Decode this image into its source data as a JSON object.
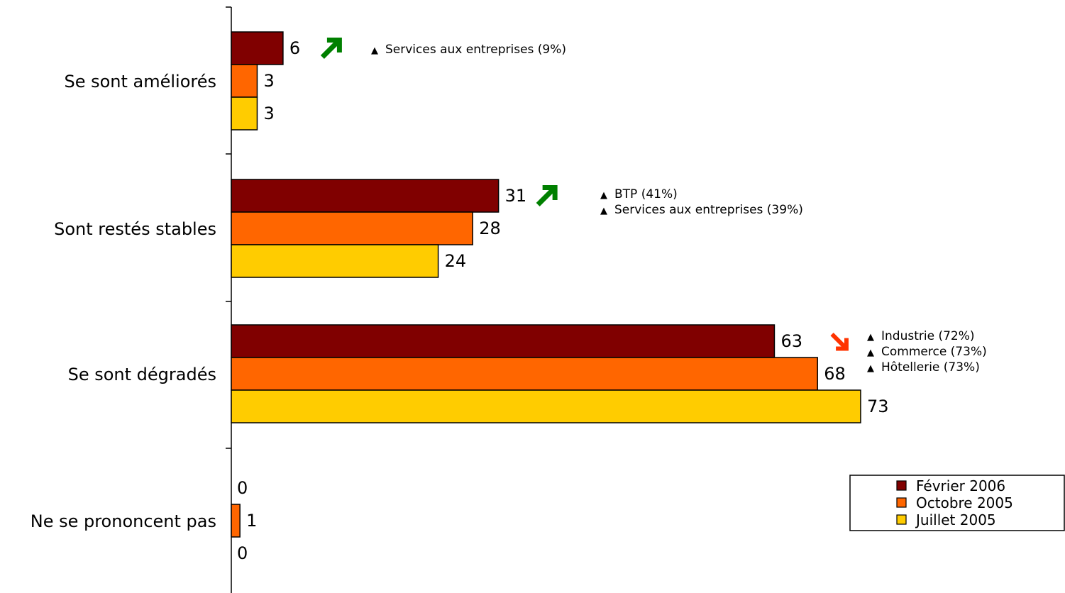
{
  "chart_data": {
    "type": "bar",
    "orientation": "horizontal",
    "categories": [
      "Se sont améliorés",
      "Sont restés stables",
      "Se sont dégradés",
      "Ne se prononcent pas"
    ],
    "series": [
      {
        "name": "Février 2006",
        "color": "#800000",
        "values": [
          6,
          31,
          63,
          0
        ]
      },
      {
        "name": "Octobre 2005",
        "color": "#FF6600",
        "values": [
          3,
          28,
          68,
          1
        ]
      },
      {
        "name": "Juillet 2005",
        "color": "#FFCC00",
        "values": [
          3,
          24,
          73,
          0
        ]
      }
    ],
    "xlim": [
      0,
      100
    ],
    "grid": false,
    "legend_position": "bottom-right",
    "trend_arrows": [
      {
        "category": "Se sont améliorés",
        "direction": "up",
        "color": "#008000"
      },
      {
        "category": "Sont restés stables",
        "direction": "up",
        "color": "#008000"
      },
      {
        "category": "Se sont dégradés",
        "direction": "down",
        "color": "#FF3300"
      }
    ],
    "annotations": [
      {
        "category": "Se sont améliorés",
        "marker": "▲",
        "lines": [
          "Services aux entreprises (9%)"
        ]
      },
      {
        "category": "Sont restés stables",
        "marker": "▲",
        "lines": [
          "BTP (41%)",
          "Services aux entreprises (39%)"
        ]
      },
      {
        "category": "Se sont dégradés",
        "marker": "▲",
        "lines": [
          "Industrie (72%)",
          "Commerce (73%)",
          "Hôtellerie (73%)"
        ]
      }
    ]
  }
}
